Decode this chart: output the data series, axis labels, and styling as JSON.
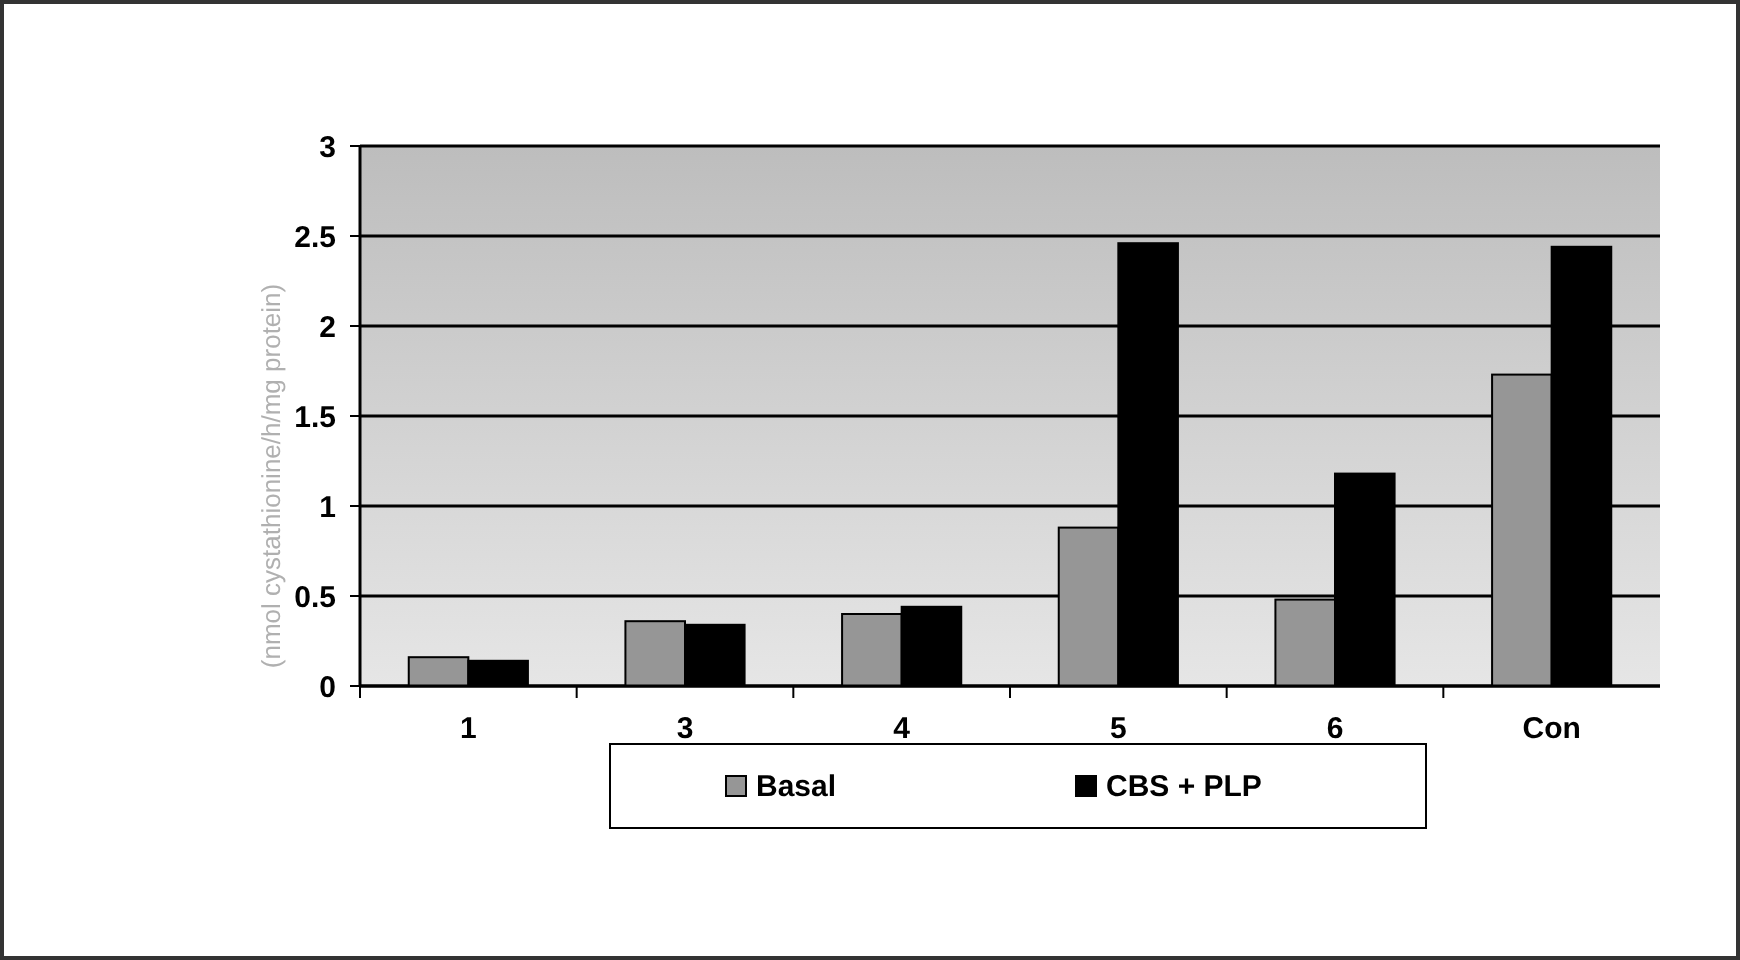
{
  "chart_data": {
    "type": "bar",
    "ylabel": "(nmol cystathionine/h/mg protein)",
    "categories": [
      "1",
      "3",
      "4",
      "5",
      "6",
      "Con"
    ],
    "series": [
      {
        "name": "Basal",
        "color": "#969696",
        "values": [
          0.16,
          0.36,
          0.4,
          0.88,
          0.48,
          1.73
        ]
      },
      {
        "name": "CBS + PLP",
        "color": "#000000",
        "values": [
          0.14,
          0.34,
          0.44,
          2.46,
          1.18,
          2.44
        ]
      }
    ],
    "ylim": [
      0,
      3
    ],
    "yticks": [
      0,
      0.5,
      1,
      1.5,
      2,
      2.5,
      3
    ],
    "grid": "y",
    "legend": "bottom"
  }
}
